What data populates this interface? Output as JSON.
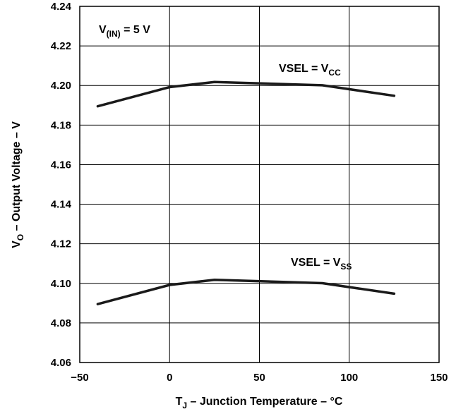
{
  "chart_data": {
    "type": "line",
    "x_ticks": [
      -50,
      0,
      50,
      100,
      150
    ],
    "y_ticks": [
      4.06,
      4.08,
      4.1,
      4.12,
      4.14,
      4.16,
      4.18,
      4.2,
      4.22,
      4.24
    ],
    "x_tick_labels": [
      "−50",
      "0",
      "50",
      "100",
      "150"
    ],
    "y_tick_labels": [
      "4.06",
      "4.08",
      "4.10",
      "4.12",
      "4.14",
      "4.16",
      "4.18",
      "4.20",
      "4.22",
      "4.24"
    ],
    "xlim": [
      -50,
      150
    ],
    "ylim": [
      4.06,
      4.24
    ],
    "grid": true,
    "xlabel": {
      "main": "T",
      "sub": "J",
      "rest": " – Junction Temperature – °C"
    },
    "ylabel": {
      "main": "V",
      "sub": "O",
      "rest": " – Output Voltage – V"
    },
    "condition": {
      "main": "V",
      "sub": "(IN)",
      "rest": " = 5 V"
    },
    "series": [
      {
        "name": {
          "main": "VSEL = V",
          "sub": "CC"
        },
        "x": [
          -40,
          0,
          25,
          85,
          125
        ],
        "y": [
          4.1895,
          4.1992,
          4.2018,
          4.2001,
          4.1948
        ]
      },
      {
        "name": {
          "main": "VSEL = V",
          "sub": "SS"
        },
        "x": [
          -40,
          0,
          25,
          85,
          125
        ],
        "y": [
          4.0895,
          4.0992,
          4.1018,
          4.1001,
          4.0948
        ]
      }
    ],
    "colors": {
      "line": "#1a1a1a",
      "grid": "#000000"
    }
  }
}
